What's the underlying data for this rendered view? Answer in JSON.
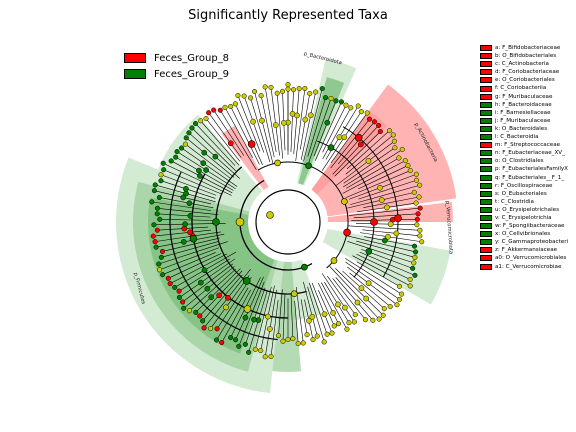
{
  "title": "Significantly Represented Taxa",
  "colors": {
    "red": "#ff0000",
    "green": "#008000",
    "nonsig": "#cccc00",
    "red_shade": "#ff9a9a",
    "green_shade_light": "#c4e3c4",
    "green_shade_mid": "#9ccf9c",
    "green_shade_dark": "#79bd79"
  },
  "legend": [
    {
      "label": "Feces_Group_8",
      "color": "#ff0000"
    },
    {
      "label": "Feces_Group_9",
      "color": "#008000"
    }
  ],
  "key": [
    {
      "label": "a: F_Bifidobacteriaceae",
      "color": "#ff0000"
    },
    {
      "label": "b: O_Bifidobacteriales",
      "color": "#ff0000"
    },
    {
      "label": "c: C_Actinobacteria",
      "color": "#ff0000"
    },
    {
      "label": "d: F_Coriobacteriaceae",
      "color": "#ff0000"
    },
    {
      "label": "e: O_Coriobacteriales",
      "color": "#ff0000"
    },
    {
      "label": "f: C_Coriobacteriia",
      "color": "#ff0000"
    },
    {
      "label": "g: F_Muribaculaceae",
      "color": "#ff0000"
    },
    {
      "label": "h: F_Bacteroidaceae",
      "color": "#008000"
    },
    {
      "label": "i: F_Barnesiellaceae",
      "color": "#008000"
    },
    {
      "label": "j: F_Muribaculaceae",
      "color": "#008000"
    },
    {
      "label": "k: O_Bacteroidales",
      "color": "#008000"
    },
    {
      "label": "l: C_Bacteroidia",
      "color": "#008000"
    },
    {
      "label": "m: F_Streptococcaceae",
      "color": "#ff0000"
    },
    {
      "label": "n: F_Eubacteriaceae_XV_",
      "color": "#008000"
    },
    {
      "label": "o: O_Clostridiales",
      "color": "#008000"
    },
    {
      "label": "p: F_EubacterialesFamilyX",
      "color": "#008000"
    },
    {
      "label": "q: F_Eubacteriales__F_1_",
      "color": "#008000"
    },
    {
      "label": "r: F_Oscillospiraceae",
      "color": "#008000"
    },
    {
      "label": "s: O_Eubacteriales",
      "color": "#008000"
    },
    {
      "label": "t: C_Clostridia",
      "color": "#008000"
    },
    {
      "label": "u: O_Erysipelotrichales",
      "color": "#008000"
    },
    {
      "label": "v: C_Erysipelotrichia",
      "color": "#008000"
    },
    {
      "label": "w: F_Spongiibacteraceae",
      "color": "#008000"
    },
    {
      "label": "x: O_Cellvibrionales",
      "color": "#008000"
    },
    {
      "label": "y: C_Gammaproteobacteri",
      "color": "#008000"
    },
    {
      "label": "z: F_Akkermansiaceae",
      "color": "#ff0000"
    },
    {
      "label": "a0: O_Verrucomicrobiales",
      "color": "#ff0000"
    },
    {
      "label": "a1: C_Verrucomicrobiae",
      "color": "#ff0000"
    }
  ],
  "clade_labels": {
    "bacteroidota": "p_Bacteroidota",
    "actinobacteria": "p_Actinobacteria",
    "verrucomicrobiota": "p_Verrucomicrobiota",
    "firmicutes": "p_Firmicutes"
  }
}
